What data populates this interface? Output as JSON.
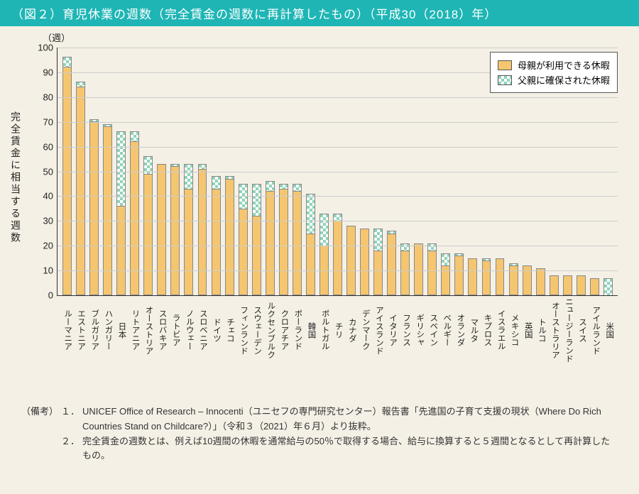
{
  "title": "（図２）育児休業の週数（完全賃金の週数に再計算したもの）（平成30（2018）年）",
  "chart": {
    "type": "stacked-bar",
    "y_unit": "（週）",
    "y_axis_title": "完全賃金に相当する週数",
    "ylim": [
      0,
      100
    ],
    "ytick_step": 10,
    "bar_width_pct": 68,
    "colors": {
      "mother": "#f5c66f",
      "father": "#8fd4b8",
      "axis": "#333333",
      "grid": "#cccccc",
      "background": "#f5f0e6",
      "title_bg": "#1fb5b5"
    },
    "font_sizes": {
      "title": 17,
      "axis_tick": 13,
      "axis_title": 14,
      "x_label": 11.5,
      "legend": 13,
      "footnote": 13
    },
    "legend": {
      "items": [
        {
          "label": "母親が利用できる休暇",
          "key": "mother"
        },
        {
          "label": "父親に確保された休暇",
          "key": "father"
        }
      ],
      "position": "top-right"
    },
    "categories": [
      "ルーマニア",
      "エストニア",
      "ブルガリア",
      "ハンガリー",
      "日本",
      "リトアニア",
      "オーストリア",
      "スロバキア",
      "ラトビア",
      "ノルウェー",
      "スロベニア",
      "ドイツ",
      "チェコ",
      "フィンランド",
      "スウェーデン",
      "ルクセンブルク",
      "クロアチア",
      "ポーランド",
      "韓国",
      "ポルトガル",
      "チリ",
      "カナダ",
      "デンマーク",
      "アイスランド",
      "イタリア",
      "フランス",
      "ギリシャ",
      "スペイン",
      "ベルギー",
      "オランダ",
      "マルタ",
      "キプロス",
      "イスラエル",
      "メキシコ",
      "英国",
      "トルコ",
      "オーストラリア",
      "ニュージーランド",
      "スイス",
      "アイルランド",
      "米国"
    ],
    "series": {
      "mother": [
        92,
        84,
        70,
        68,
        36,
        62,
        49,
        53,
        52,
        43,
        51,
        43,
        47,
        35,
        32,
        42,
        43,
        42,
        25,
        20,
        30,
        28,
        27,
        18,
        25,
        18,
        21,
        18,
        12,
        16,
        15,
        14,
        15,
        12,
        12,
        11,
        8,
        8,
        8,
        7,
        0
      ],
      "father": [
        4,
        2,
        1,
        1,
        30,
        4,
        7,
        0,
        1,
        10,
        2,
        5,
        1,
        10,
        13,
        4,
        2,
        3,
        16,
        13,
        3,
        0,
        0,
        9,
        1,
        3,
        0,
        3,
        5,
        1,
        0,
        1,
        0,
        1,
        0,
        0,
        0,
        0,
        0,
        0,
        7
      ]
    }
  },
  "footnotes": {
    "label": "（備考）",
    "items": [
      {
        "num": "１．",
        "text": "UNICEF Office of Research – Innocenti（ユニセフの専門研究センター）報告書「先進国の子育て支援の現状（Where Do Rich Countries Stand on Childcare?）」（令和３（2021）年６月）より抜粋。"
      },
      {
        "num": "２．",
        "text": "完全賃金の週数とは、例えば10週間の休暇を通常給与の50％で取得する場合、給与に換算すると５週間となるとして再計算したもの。"
      }
    ]
  }
}
